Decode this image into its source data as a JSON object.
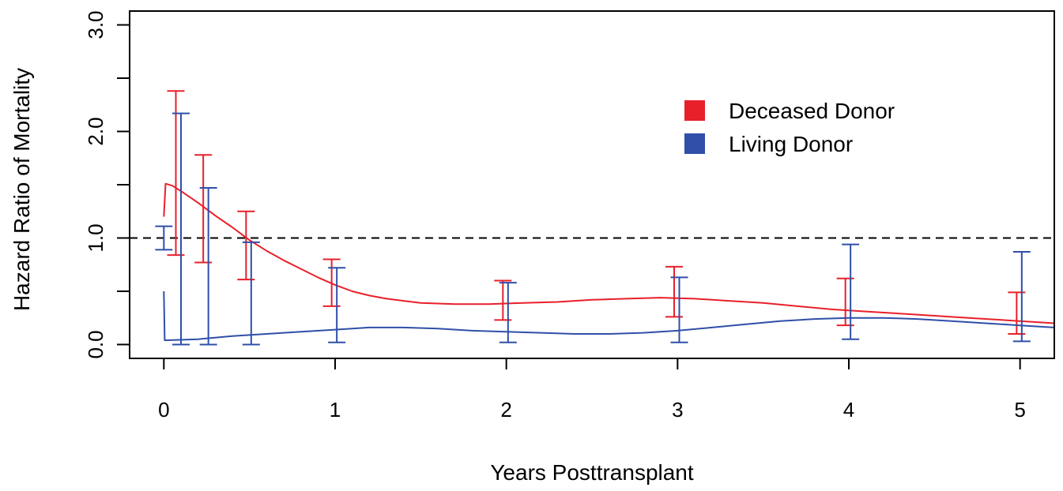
{
  "chart_data": {
    "type": "line",
    "xlabel": "Years Posttransplant",
    "ylabel": "Hazard Ratio of Mortality",
    "xlim": [
      -0.2,
      5.2
    ],
    "ylim": [
      -0.13,
      3.13
    ],
    "x_ticks": [
      0,
      1,
      2,
      3,
      4,
      5
    ],
    "x_tick_labels": [
      "0",
      "1",
      "2",
      "3",
      "4",
      "5"
    ],
    "y_ticks": [
      0.0,
      0.5,
      1.0,
      1.5,
      2.0,
      2.5,
      3.0
    ],
    "y_tick_labels": [
      "0.0",
      "",
      "1.0",
      "",
      "2.0",
      "",
      "3.0"
    ],
    "reference_line": {
      "y": 1.0,
      "style": "dashed"
    },
    "legend": {
      "placement": "upper-right"
    },
    "series": [
      {
        "name": "Deceased Donor",
        "color": "#e8202a",
        "curve": [
          [
            0,
            1.2
          ],
          [
            0.01,
            1.51
          ],
          [
            0.05,
            1.49
          ],
          [
            0.1,
            1.44
          ],
          [
            0.2,
            1.33
          ],
          [
            0.3,
            1.21
          ],
          [
            0.4,
            1.1
          ],
          [
            0.5,
            0.98
          ],
          [
            0.6,
            0.88
          ],
          [
            0.7,
            0.79
          ],
          [
            0.8,
            0.71
          ],
          [
            0.9,
            0.63
          ],
          [
            1.0,
            0.56
          ],
          [
            1.1,
            0.5
          ],
          [
            1.2,
            0.46
          ],
          [
            1.3,
            0.43
          ],
          [
            1.4,
            0.41
          ],
          [
            1.5,
            0.39
          ],
          [
            1.7,
            0.38
          ],
          [
            1.9,
            0.38
          ],
          [
            2.1,
            0.39
          ],
          [
            2.3,
            0.4
          ],
          [
            2.5,
            0.42
          ],
          [
            2.7,
            0.43
          ],
          [
            2.9,
            0.44
          ],
          [
            3.1,
            0.43
          ],
          [
            3.3,
            0.41
          ],
          [
            3.5,
            0.39
          ],
          [
            3.7,
            0.36
          ],
          [
            3.9,
            0.33
          ],
          [
            4.1,
            0.31
          ],
          [
            4.3,
            0.29
          ],
          [
            4.5,
            0.27
          ],
          [
            4.7,
            0.25
          ],
          [
            4.9,
            0.23
          ],
          [
            5.1,
            0.21
          ],
          [
            5.2,
            0.2
          ]
        ],
        "error_bars": [
          {
            "x": 0.07,
            "lower": 0.84,
            "upper": 2.38
          },
          {
            "x": 0.23,
            "lower": 0.77,
            "upper": 1.78
          },
          {
            "x": 0.48,
            "lower": 0.61,
            "upper": 1.25
          },
          {
            "x": 0.98,
            "lower": 0.36,
            "upper": 0.8
          },
          {
            "x": 1.98,
            "lower": 0.23,
            "upper": 0.6
          },
          {
            "x": 2.98,
            "lower": 0.26,
            "upper": 0.73
          },
          {
            "x": 3.98,
            "lower": 0.18,
            "upper": 0.62
          },
          {
            "x": 4.98,
            "lower": 0.1,
            "upper": 0.49
          }
        ]
      },
      {
        "name": "Living Donor",
        "color": "#2f4fa8",
        "curve": [
          [
            0,
            0.5
          ],
          [
            0.005,
            0.04
          ],
          [
            0.2,
            0.05
          ],
          [
            0.4,
            0.08
          ],
          [
            0.6,
            0.1
          ],
          [
            0.8,
            0.12
          ],
          [
            1.0,
            0.14
          ],
          [
            1.2,
            0.16
          ],
          [
            1.4,
            0.16
          ],
          [
            1.6,
            0.15
          ],
          [
            1.8,
            0.13
          ],
          [
            2.0,
            0.12
          ],
          [
            2.2,
            0.11
          ],
          [
            2.4,
            0.1
          ],
          [
            2.6,
            0.1
          ],
          [
            2.8,
            0.11
          ],
          [
            3.0,
            0.13
          ],
          [
            3.2,
            0.16
          ],
          [
            3.4,
            0.19
          ],
          [
            3.6,
            0.22
          ],
          [
            3.8,
            0.24
          ],
          [
            4.0,
            0.25
          ],
          [
            4.2,
            0.25
          ],
          [
            4.4,
            0.24
          ],
          [
            4.6,
            0.22
          ],
          [
            4.8,
            0.2
          ],
          [
            5.0,
            0.18
          ],
          [
            5.2,
            0.16
          ]
        ],
        "error_bars": [
          {
            "x": 0.0,
            "lower": 0.89,
            "upper": 1.11
          },
          {
            "x": 0.1,
            "lower": 0.0,
            "upper": 2.17
          },
          {
            "x": 0.26,
            "lower": 0.0,
            "upper": 1.47
          },
          {
            "x": 0.51,
            "lower": 0.0,
            "upper": 0.96
          },
          {
            "x": 1.01,
            "lower": 0.02,
            "upper": 0.72
          },
          {
            "x": 2.01,
            "lower": 0.02,
            "upper": 0.58
          },
          {
            "x": 3.01,
            "lower": 0.02,
            "upper": 0.63
          },
          {
            "x": 4.01,
            "lower": 0.05,
            "upper": 0.94
          },
          {
            "x": 5.01,
            "lower": 0.03,
            "upper": 0.87
          }
        ]
      }
    ]
  }
}
